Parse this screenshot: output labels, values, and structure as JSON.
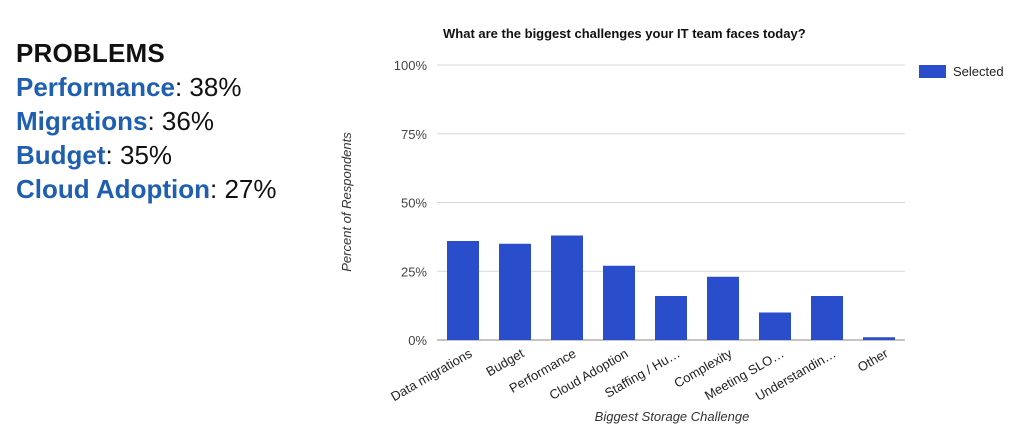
{
  "problems": {
    "title": "PROBLEMS",
    "items": [
      {
        "name": "Performance",
        "sep": ": ",
        "pct": "38%"
      },
      {
        "name": "Migrations",
        "sep": ": ",
        "pct": "36%"
      },
      {
        "name": "Budget",
        "sep": ": ",
        "pct": "35%"
      },
      {
        "name": "Cloud Adoption",
        "sep": ": ",
        "pct": "27%"
      }
    ]
  },
  "chart_data": {
    "type": "bar",
    "title": "What are the biggest challenges your IT team faces today?",
    "xlabel": "Biggest Storage Challenge",
    "ylabel": "Percent of Respondents",
    "categories": [
      "Data migrations",
      "Budget",
      "Performance",
      "Cloud Adoption",
      "Staffing / Hu…",
      "Complexity",
      "Meeting SLO…",
      "Understandin…",
      "Other"
    ],
    "series": [
      {
        "name": "Selected",
        "values": [
          36,
          35,
          38,
          27,
          16,
          23,
          10,
          16,
          1
        ],
        "color": "#2a4ecb"
      }
    ],
    "ylim": [
      0,
      100
    ],
    "yticks": [
      0,
      25,
      50,
      75,
      100
    ],
    "ytick_labels": [
      "0%",
      "25%",
      "50%",
      "75%",
      "100%"
    ],
    "grid": true,
    "legend_position": "right",
    "gridline_color": "#d9d9d9"
  }
}
